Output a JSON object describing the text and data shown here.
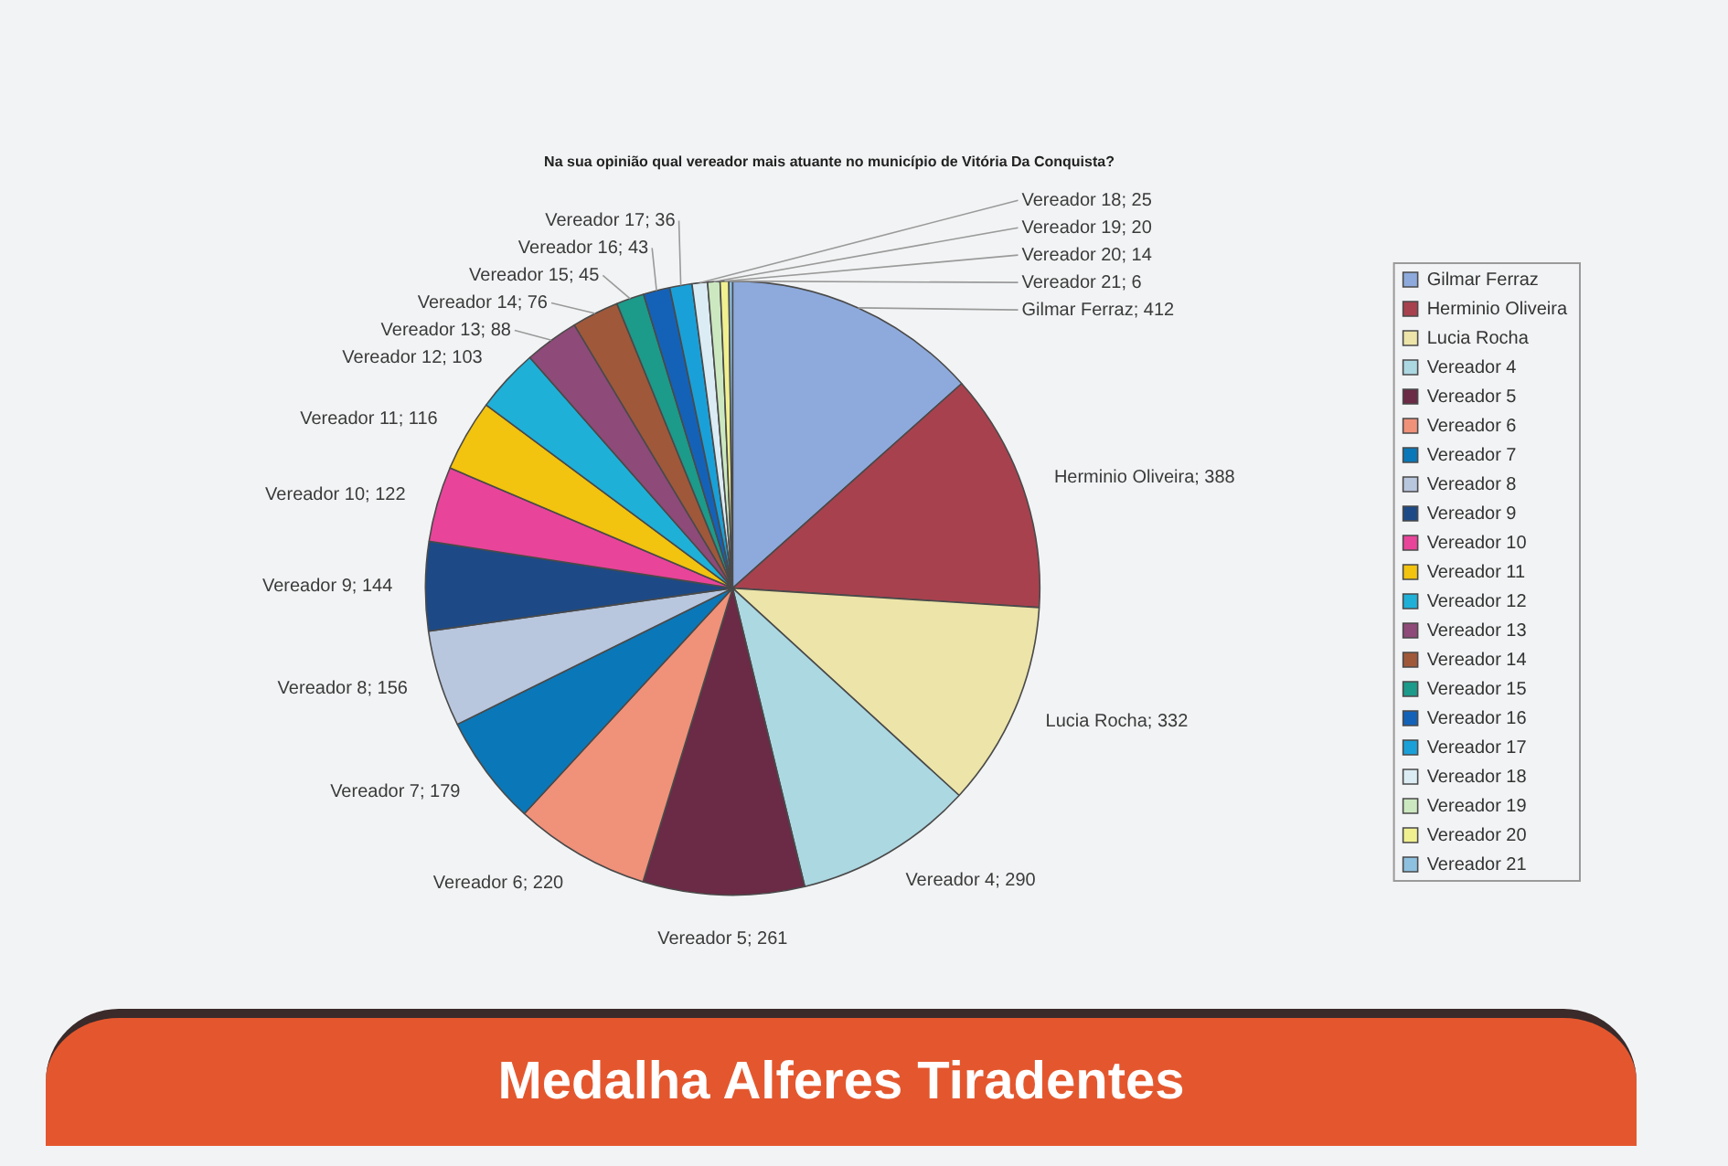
{
  "chart_data": {
    "type": "pie",
    "title": "Na sua opinião qual vereador mais atuante no município de Vitória Da Conquista?",
    "categories": [
      "Gilmar Ferraz",
      "Herminio Oliveira",
      "Lucia Rocha",
      "Vereador 4",
      "Vereador 5",
      "Vereador 6",
      "Vereador 7",
      "Vereador 8",
      "Vereador 9",
      "Vereador 10",
      "Vereador 11",
      "Vereador 12",
      "Vereador 13",
      "Vereador 14",
      "Vereador 15",
      "Vereador 16",
      "Vereador 17",
      "Vereador 18",
      "Vereador 19",
      "Vereador 20",
      "Vereador 21"
    ],
    "values": [
      412,
      388,
      332,
      290,
      261,
      220,
      179,
      156,
      144,
      122,
      116,
      103,
      88,
      76,
      45,
      43,
      36,
      25,
      20,
      14,
      6
    ],
    "value_labels": [
      "Gilmar Ferraz; 412",
      "Herminio Oliveira; 388",
      "Lucia Rocha; 332",
      "Vereador 4; 290",
      "Vereador 5; 261",
      "Vereador 6; 220",
      "Vereador 7; 179",
      "Vereador 8; 156",
      "Vereador 9; 144",
      "Vereador 10; 122",
      "Vereador 11; 116",
      "Vereador 12; 103",
      "Vereador 13; 88",
      "Vereador 14; 76",
      "Vereador 15; 45",
      "Vereador 16; 43",
      "Vereador 17; 36",
      "Vereador 18; 25",
      "Vereador 19; 20",
      "Vereador 20; 14",
      "Vereador 21; 6"
    ],
    "colors": [
      "#8eaadc",
      "#a8414e",
      "#ece4a8",
      "#acd8e2",
      "#6b2a45",
      "#f0917a",
      "#0a78b8",
      "#b8c6de",
      "#1d4a86",
      "#e8449a",
      "#f2c30f",
      "#1fb0d8",
      "#8e4a78",
      "#a0583a",
      "#1c9a8a",
      "#1462b8",
      "#1aa0d8",
      "#dcecf4",
      "#cce8c0",
      "#f0f090",
      "#8ec0e0"
    ],
    "legend": "right",
    "annotations": [
      "Medalha Alferes Tiradentes"
    ]
  }
}
